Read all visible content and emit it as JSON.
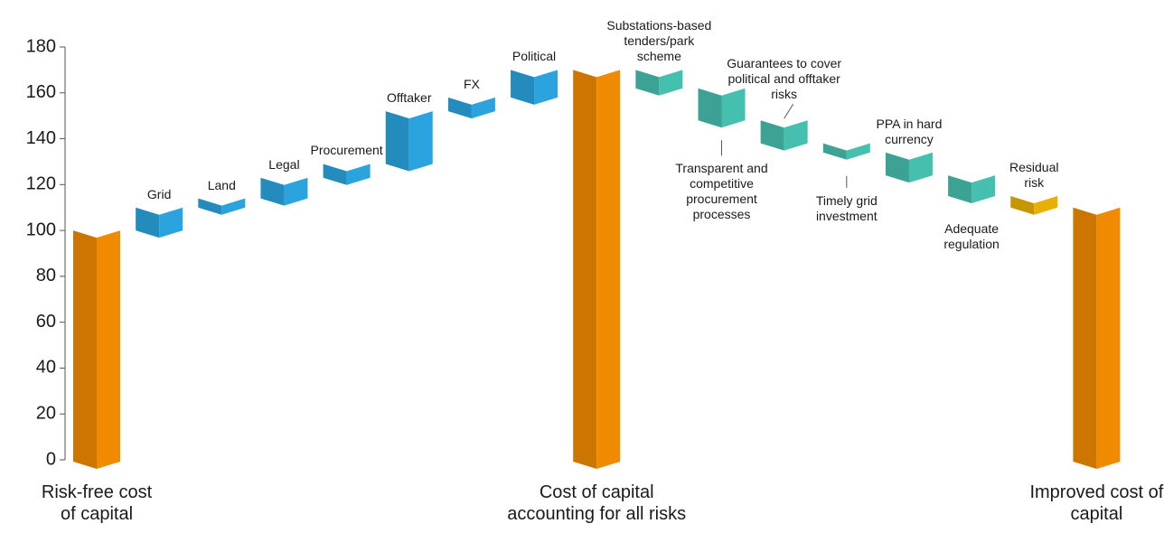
{
  "chart_data": {
    "type": "waterfall",
    "categories": [
      "Risk-free cost of capital",
      "Grid",
      "Land",
      "Legal",
      "Procurement",
      "Offtaker",
      "FX",
      "Political",
      "Cost of capital accounting for all risks",
      "Substations-based tenders/park scheme",
      "Transparent and competitive procurement processes",
      "Guarantees to cover political and offtaker risks",
      "Timely grid investment",
      "PPA in hard currency",
      "Adequate regulation",
      "Residual risk",
      "Improved cost of capital"
    ],
    "measure": [
      "absolute",
      "relative",
      "relative",
      "relative",
      "relative",
      "relative",
      "relative",
      "relative",
      "absolute",
      "relative",
      "relative",
      "relative",
      "relative",
      "relative",
      "relative",
      "relative",
      "absolute"
    ],
    "values": [
      100,
      10,
      4,
      9,
      6,
      23,
      6,
      12,
      170,
      -8,
      -14,
      -10,
      -4,
      -10,
      -9,
      -5,
      110
    ],
    "colors": [
      "#f08a00",
      "#2aa3de",
      "#2aa3de",
      "#2aa3de",
      "#2aa3de",
      "#2aa3de",
      "#2aa3de",
      "#2aa3de",
      "#f08a00",
      "#45bfae",
      "#45bfae",
      "#45bfae",
      "#45bfae",
      "#45bfae",
      "#45bfae",
      "#e8b000",
      "#f08a00"
    ],
    "ylim": [
      0,
      180
    ],
    "yticks": [
      0,
      20,
      40,
      60,
      80,
      100,
      120,
      140,
      160,
      180
    ]
  }
}
